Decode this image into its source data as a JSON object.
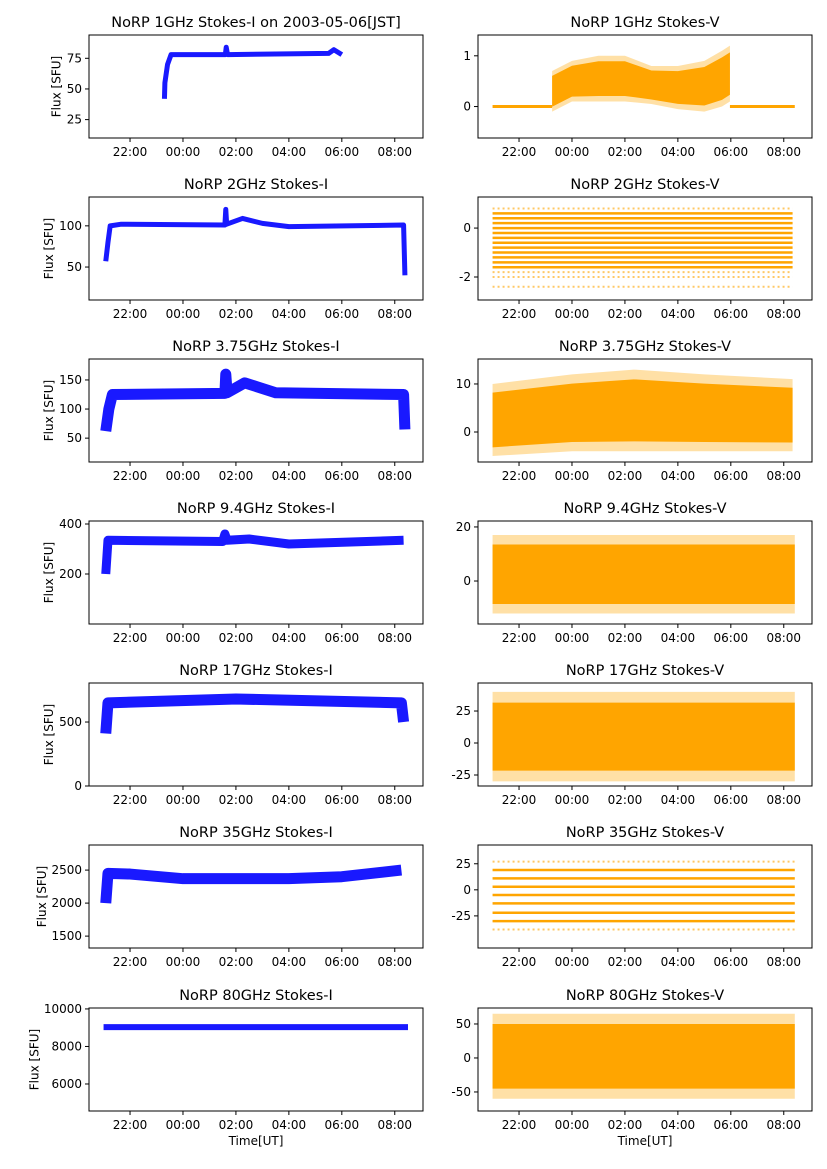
{
  "chart_data": {
    "type": "multi-panel time series",
    "xticks": [
      "22:00",
      "00:00",
      "02:00",
      "04:00",
      "06:00",
      "08:00"
    ],
    "xlim": [
      "20:27",
      "09:04"
    ],
    "xlabel": "Time[UT]",
    "colors": {
      "stokes_i": "#0000ff",
      "stokes_v": "#ffa500"
    },
    "panels": [
      {
        "title": "NoRP 1GHz Stokes-I on 2003-05-06[JST]",
        "ylabel": "Flux [SFU]",
        "kind": "I",
        "ylim": [
          10,
          94
        ],
        "yticks": [
          25,
          50,
          75
        ],
        "width": 2,
        "points": [
          [
            "23:18",
            42
          ],
          [
            "23:19",
            55
          ],
          [
            "23:25",
            70
          ],
          [
            "23:33",
            78
          ],
          [
            "01:36",
            78
          ],
          [
            "01:38",
            84
          ],
          [
            "01:41",
            78
          ],
          [
            "05:30",
            79
          ],
          [
            "05:42",
            82
          ],
          [
            "06:00",
            78
          ]
        ]
      },
      {
        "title": "NoRP 1GHz Stokes-V",
        "ylabel": "",
        "kind": "V",
        "ylim": [
          -0.62,
          1.41
        ],
        "yticks": [
          0,
          1
        ],
        "levels": [
          {
            "value": 0,
            "from": "21:00",
            "to": "23:15"
          },
          {
            "value": 0,
            "from": "05:58",
            "to": "08:25"
          }
        ],
        "envelope": [
          [
            "23:15",
            -0.1,
            0.7
          ],
          [
            "00:00",
            0.1,
            0.9
          ],
          [
            "01:00",
            0.1,
            1.0
          ],
          [
            "02:00",
            0.1,
            1.0
          ],
          [
            "03:00",
            0.05,
            0.8
          ],
          [
            "04:00",
            -0.05,
            0.8
          ],
          [
            "05:00",
            -0.1,
            0.9
          ],
          [
            "05:40",
            0,
            1.1
          ],
          [
            "05:58",
            0.1,
            1.2
          ]
        ]
      },
      {
        "title": "NoRP 2GHz Stokes-I",
        "ylabel": "Flux [SFU]",
        "kind": "I",
        "ylim": [
          10,
          135
        ],
        "yticks": [
          50,
          100
        ],
        "width": 2,
        "points": [
          [
            "21:05",
            57
          ],
          [
            "21:10",
            80
          ],
          [
            "21:15",
            100
          ],
          [
            "21:40",
            102
          ],
          [
            "01:35",
            101
          ],
          [
            "01:37",
            120
          ],
          [
            "01:39",
            102
          ],
          [
            "02:15",
            109
          ],
          [
            "03:00",
            103
          ],
          [
            "04:00",
            99
          ],
          [
            "08:20",
            101
          ],
          [
            "08:23",
            40
          ]
        ]
      },
      {
        "title": "NoRP 2GHz Stokes-V",
        "ylabel": "",
        "kind": "V",
        "ylim": [
          -2.94,
          1.27
        ],
        "yticks": [
          -2,
          0
        ],
        "level_values": [
          0.6,
          0.4,
          0.2,
          0,
          -0.2,
          -0.4,
          -0.6,
          -0.8,
          -1.0,
          -1.2,
          -1.4,
          -1.6
        ],
        "sparse_levels": [
          0.8,
          -1.8,
          -2.0,
          -2.4
        ],
        "span": [
          "21:00",
          "08:20"
        ]
      },
      {
        "title": "NoRP 3.75GHz Stokes-I",
        "ylabel": "Flux [SFU]",
        "kind": "I",
        "ylim": [
          9,
          186
        ],
        "yticks": [
          50,
          100,
          150
        ],
        "width": 8,
        "points": [
          [
            "21:05",
            62
          ],
          [
            "21:12",
            100
          ],
          [
            "21:20",
            125
          ],
          [
            "01:35",
            127
          ],
          [
            "01:37",
            160
          ],
          [
            "01:40",
            128
          ],
          [
            "02:20",
            145
          ],
          [
            "03:30",
            128
          ],
          [
            "08:20",
            125
          ],
          [
            "08:23",
            65
          ]
        ]
      },
      {
        "title": "NoRP 3.75GHz Stokes-V",
        "ylabel": "",
        "kind": "V",
        "ylim": [
          -6.25,
          15.2
        ],
        "yticks": [
          0,
          10
        ],
        "envelope": [
          [
            "21:00",
            -5,
            10
          ],
          [
            "00:00",
            -4,
            12
          ],
          [
            "02:20",
            -4,
            13
          ],
          [
            "05:00",
            -4,
            12
          ],
          [
            "08:20",
            -4,
            11
          ]
        ]
      },
      {
        "title": "NoRP 9.4GHz Stokes-I",
        "ylabel": "Flux [SFU]",
        "kind": "I",
        "ylim": [
          0,
          412
        ],
        "yticks": [
          200,
          400
        ],
        "width": 6,
        "points": [
          [
            "21:05",
            200
          ],
          [
            "21:10",
            335
          ],
          [
            "01:30",
            330
          ],
          [
            "01:35",
            360
          ],
          [
            "01:40",
            335
          ],
          [
            "02:30",
            340
          ],
          [
            "04:00",
            320
          ],
          [
            "08:20",
            335
          ]
        ]
      },
      {
        "title": "NoRP 9.4GHz Stokes-V",
        "ylabel": "",
        "kind": "V",
        "ylim": [
          -15.9,
          22.2
        ],
        "yticks": [
          0,
          20
        ],
        "envelope": [
          [
            "21:00",
            -12,
            17
          ],
          [
            "08:25",
            -12,
            17
          ]
        ]
      },
      {
        "title": "NoRP 17GHz Stokes-I",
        "ylabel": "Flux [SFU]",
        "kind": "I",
        "ylim": [
          0,
          805
        ],
        "yticks": [
          0,
          500
        ],
        "width": 8,
        "points": [
          [
            "21:05",
            410
          ],
          [
            "21:10",
            650
          ],
          [
            "02:00",
            680
          ],
          [
            "08:15",
            650
          ],
          [
            "08:20",
            500
          ]
        ]
      },
      {
        "title": "NoRP 17GHz Stokes-V",
        "ylabel": "",
        "kind": "V",
        "ylim": [
          -33.6,
          46.9
        ],
        "yticks": [
          -25,
          0,
          25
        ],
        "envelope": [
          [
            "21:00",
            -30,
            40
          ],
          [
            "08:25",
            -30,
            40
          ]
        ]
      },
      {
        "title": "NoRP 35GHz Stokes-I",
        "ylabel": "Flux [SFU]",
        "kind": "I",
        "ylim": [
          1320,
          2880
        ],
        "yticks": [
          1500,
          2000,
          2500
        ],
        "width": 8,
        "points": [
          [
            "21:05",
            2000
          ],
          [
            "21:10",
            2450
          ],
          [
            "22:00",
            2440
          ],
          [
            "00:00",
            2370
          ],
          [
            "04:00",
            2370
          ],
          [
            "06:00",
            2400
          ],
          [
            "08:15",
            2500
          ]
        ]
      },
      {
        "title": "NoRP 35GHz Stokes-V",
        "ylabel": "",
        "kind": "V",
        "ylim": [
          -55.8,
          43
        ],
        "yticks": [
          -25,
          0,
          25
        ],
        "level_values": [
          19,
          11,
          3,
          -5,
          -13,
          -22,
          -30
        ],
        "sparse_levels": [
          27,
          -38
        ],
        "span": [
          "21:00",
          "08:25"
        ]
      },
      {
        "title": "NoRP 80GHz Stokes-I",
        "ylabel": "Flux [SFU]",
        "kind": "I",
        "ylim": [
          4560,
          10050
        ],
        "yticks": [
          6000,
          8000,
          10000
        ],
        "width": 3,
        "points": [
          [
            "21:00",
            9030
          ],
          [
            "08:30",
            9030
          ]
        ]
      },
      {
        "title": "NoRP 80GHz Stokes-V",
        "ylabel": "",
        "kind": "V",
        "ylim": [
          -78,
          73.5
        ],
        "yticks": [
          -50,
          0,
          50
        ],
        "envelope": [
          [
            "21:00",
            -60,
            65
          ],
          [
            "08:25",
            -60,
            65
          ]
        ]
      }
    ]
  }
}
